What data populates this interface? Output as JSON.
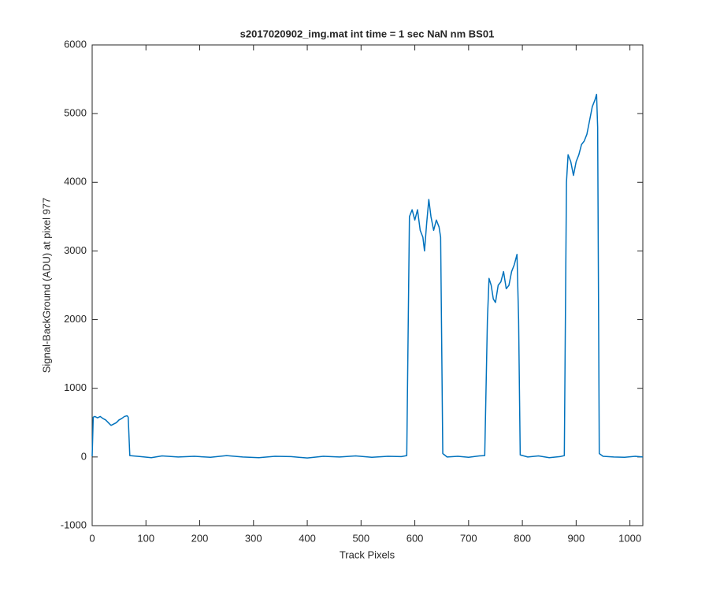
{
  "chart_data": {
    "type": "line",
    "title": "s2017020902_img.mat int time = 1 sec  NaN nm BS01",
    "xlabel": "Track Pixels",
    "ylabel": "Signal-BackGround (ADU) at pixel 977",
    "color": "#0072bd",
    "x": [
      0,
      2,
      5,
      10,
      15,
      20,
      25,
      30,
      35,
      40,
      45,
      50,
      55,
      60,
      65,
      67,
      70,
      90,
      110,
      130,
      160,
      190,
      220,
      250,
      280,
      310,
      340,
      370,
      400,
      430,
      460,
      490,
      520,
      550,
      575,
      585,
      590,
      595,
      600,
      605,
      610,
      615,
      618,
      622,
      626,
      630,
      635,
      640,
      645,
      648,
      652,
      660,
      680,
      700,
      720,
      730,
      735,
      738,
      742,
      746,
      750,
      755,
      760,
      765,
      770,
      775,
      780,
      785,
      790,
      793,
      796,
      810,
      830,
      850,
      870,
      878,
      882,
      885,
      890,
      895,
      900,
      905,
      910,
      915,
      920,
      925,
      930,
      935,
      938,
      940,
      943,
      950,
      970,
      990,
      1010,
      1024
    ],
    "values": [
      10,
      580,
      590,
      570,
      590,
      560,
      540,
      500,
      460,
      480,
      500,
      540,
      560,
      590,
      600,
      580,
      20,
      5,
      -10,
      15,
      0,
      10,
      -5,
      20,
      0,
      -10,
      10,
      5,
      -15,
      10,
      0,
      15,
      -5,
      10,
      5,
      20,
      3500,
      3600,
      3450,
      3600,
      3300,
      3200,
      3000,
      3400,
      3750,
      3500,
      3300,
      3450,
      3350,
      3200,
      50,
      0,
      10,
      -5,
      15,
      20,
      2000,
      2600,
      2500,
      2300,
      2250,
      2500,
      2550,
      2700,
      2450,
      2500,
      2700,
      2800,
      2950,
      2000,
      30,
      0,
      15,
      -10,
      5,
      20,
      4000,
      4400,
      4300,
      4100,
      4300,
      4400,
      4550,
      4600,
      4700,
      4900,
      5100,
      5200,
      5280,
      4800,
      50,
      10,
      0,
      -5,
      10,
      0
    ],
    "xlim": [
      0,
      1024
    ],
    "ylim": [
      -1000,
      6000
    ],
    "xticks": [
      0,
      100,
      200,
      300,
      400,
      500,
      600,
      700,
      800,
      900,
      1000
    ],
    "yticks": [
      -1000,
      0,
      1000,
      2000,
      3000,
      4000,
      5000,
      6000
    ]
  }
}
